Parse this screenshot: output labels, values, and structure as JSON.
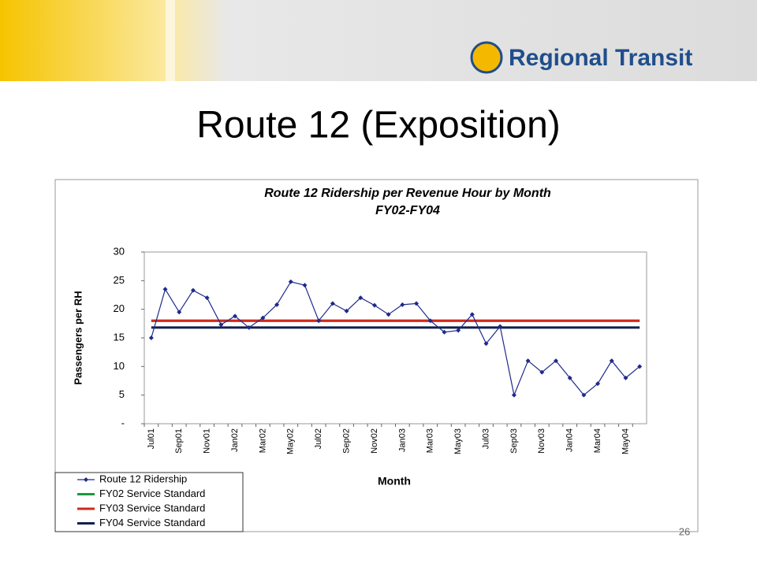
{
  "header": {
    "logo_text": "Regional Transit"
  },
  "title": "Route 12 (Exposition)",
  "chart_data": {
    "type": "line",
    "title": "Route 12 Ridership per Revenue Hour by Month",
    "subtitle": "FY02-FY04",
    "x_label": "Month",
    "y_label": "Passengers per RH",
    "categories": [
      "Jul01",
      null,
      "Sep01",
      null,
      "Nov01",
      null,
      "Jan02",
      null,
      "Mar02",
      null,
      "May02",
      null,
      "Jul02",
      null,
      "Sep02",
      null,
      "Nov02",
      null,
      "Jan03",
      null,
      "Mar03",
      null,
      "May03",
      null,
      "Jul03",
      null,
      "Sep03",
      null,
      "Nov03",
      null,
      "Jan04",
      null,
      "Mar04",
      null,
      "May04",
      null
    ],
    "series": [
      {
        "name": "Route 12 Ridership",
        "color": "#1f2a8a",
        "marker": true,
        "values": [
          15,
          23.5,
          19.5,
          23.3,
          22,
          17.3,
          18.8,
          16.8,
          18.5,
          20.8,
          24.8,
          24.2,
          18,
          21,
          19.7,
          22,
          20.7,
          19.1,
          20.8,
          21,
          18,
          16,
          16.3,
          19.1,
          14,
          17,
          5,
          11,
          9,
          11,
          8,
          5,
          7,
          11,
          8,
          10
        ]
      },
      {
        "name": "FY02 Service Standard",
        "color": "#1a9a3a",
        "marker": false,
        "values": [
          18,
          18,
          18,
          18,
          18,
          18,
          18,
          18,
          18,
          18,
          18,
          18,
          18,
          18,
          18,
          18,
          18,
          18,
          18,
          18,
          18,
          18,
          18,
          18,
          18,
          18,
          18,
          18,
          18,
          18,
          18,
          18,
          18,
          18,
          18,
          18
        ]
      },
      {
        "name": "FY03 Service Standard",
        "color": "#d0281a",
        "marker": false,
        "values": [
          18,
          18,
          18,
          18,
          18,
          18,
          18,
          18,
          18,
          18,
          18,
          18,
          18,
          18,
          18,
          18,
          18,
          18,
          18,
          18,
          18,
          18,
          18,
          18,
          18,
          18,
          18,
          18,
          18,
          18,
          18,
          18,
          18,
          18,
          18,
          18
        ]
      },
      {
        "name": "FY04 Service Standard",
        "color": "#102050",
        "marker": false,
        "values": [
          16.8,
          16.8,
          16.8,
          16.8,
          16.8,
          16.8,
          16.8,
          16.8,
          16.8,
          16.8,
          16.8,
          16.8,
          16.8,
          16.8,
          16.8,
          16.8,
          16.8,
          16.8,
          16.8,
          16.8,
          16.8,
          16.8,
          16.8,
          16.8,
          16.8,
          16.8,
          16.8,
          16.8,
          16.8,
          16.8,
          16.8,
          16.8,
          16.8,
          16.8,
          16.8,
          16.8
        ]
      }
    ],
    "ylim": [
      0,
      30
    ],
    "yticks": [
      {
        "value": 0,
        "label": "-"
      },
      5,
      10,
      15,
      20,
      25,
      30
    ],
    "grid": false
  },
  "footer": {
    "page_number": "26"
  }
}
